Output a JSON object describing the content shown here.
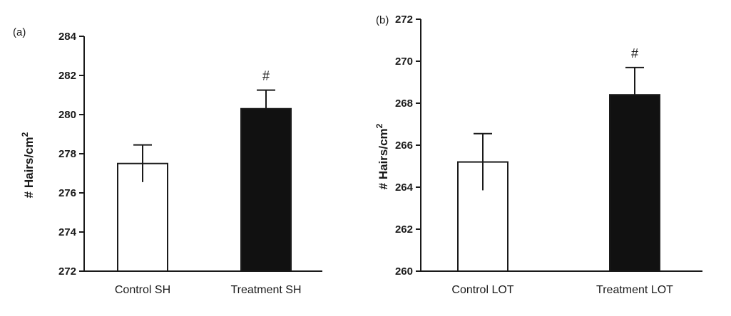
{
  "chart_data": [
    {
      "type": "bar",
      "panel_label": "(a)",
      "categories": [
        "Control SH",
        "Treatment SH"
      ],
      "values": [
        277.5,
        280.3
      ],
      "error": [
        0.95,
        0.95
      ],
      "bar_fill": [
        "#ffffff",
        "#111111"
      ],
      "significance": [
        "",
        "#"
      ],
      "ylabel_main": "# Hairs/cm",
      "ylabel_sup": "2",
      "ylim": [
        272,
        284
      ],
      "yticks": [
        272,
        274,
        276,
        278,
        280,
        282,
        284
      ],
      "grid": false
    },
    {
      "type": "bar",
      "panel_label": "(b)",
      "categories": [
        "Control LOT",
        "Treatment LOT"
      ],
      "values": [
        265.2,
        268.4
      ],
      "error": [
        1.35,
        1.3
      ],
      "bar_fill": [
        "#ffffff",
        "#111111"
      ],
      "significance": [
        "",
        "#"
      ],
      "ylabel_main": "# Hairs/cm",
      "ylabel_sup": "2",
      "ylim": [
        260,
        272
      ],
      "yticks": [
        260,
        262,
        264,
        266,
        268,
        270,
        272
      ],
      "grid": false
    }
  ]
}
